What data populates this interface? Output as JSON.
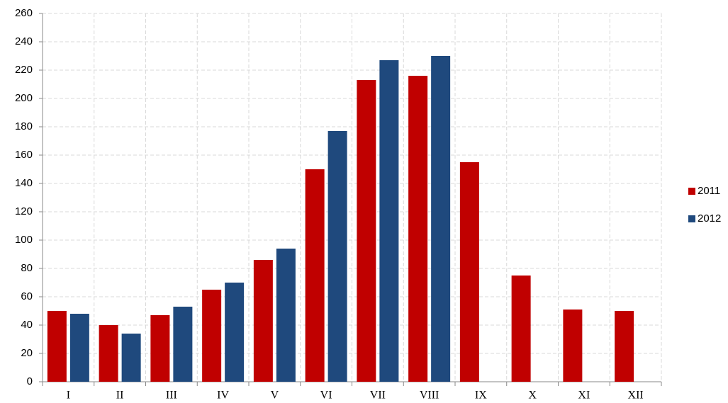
{
  "chart_data": {
    "type": "bar",
    "categories": [
      "I",
      "II",
      "III",
      "IV",
      "V",
      "VI",
      "VII",
      "VIII",
      "IX",
      "X",
      "XI",
      "XII"
    ],
    "series": [
      {
        "name": "2011",
        "color": "#c00000",
        "values": [
          50,
          40,
          47,
          65,
          86,
          150,
          213,
          216,
          155,
          75,
          51,
          50
        ]
      },
      {
        "name": "2012",
        "color": "#1f497d",
        "values": [
          48,
          34,
          53,
          70,
          94,
          177,
          227,
          230,
          null,
          null,
          null,
          null
        ]
      }
    ],
    "ylim": [
      0,
      260
    ],
    "yticks": [
      0,
      20,
      40,
      60,
      80,
      100,
      120,
      140,
      160,
      180,
      200,
      220,
      240,
      260
    ],
    "grid": true,
    "legend": "right"
  }
}
